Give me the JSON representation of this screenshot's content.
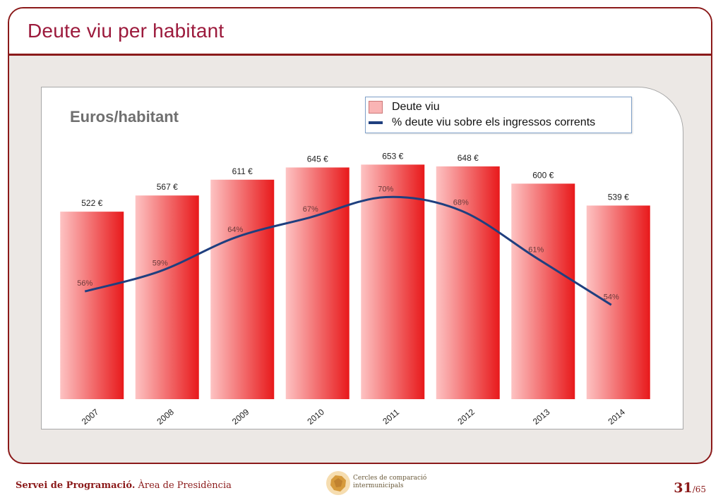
{
  "slide": {
    "title": "Deute viu per habitant"
  },
  "chart": {
    "unit_label": "Euros/habitant",
    "legend": [
      {
        "label": "Deute viu",
        "kind": "bar",
        "color": "#f9b4b4"
      },
      {
        "label": "% deute viu sobre els ingressos corrents",
        "kind": "line",
        "color": "#1f3f7f"
      }
    ]
  },
  "chart_data": {
    "type": "bar",
    "categories": [
      "2007",
      "2008",
      "2009",
      "2010",
      "2011",
      "2012",
      "2013",
      "2014"
    ],
    "series": [
      {
        "name": "Deute viu",
        "type": "bar",
        "values": [
          522,
          567,
          611,
          645,
          653,
          648,
          600,
          539
        ],
        "value_labels": [
          "522 €",
          "567 €",
          "611 €",
          "645 €",
          "653 €",
          "648 €",
          "600 €",
          "539 €"
        ],
        "color_light": "#fdc3c3",
        "color_dark": "#e8191b"
      },
      {
        "name": "% deute viu sobre els ingressos corrents",
        "type": "line",
        "values": [
          56,
          59,
          64,
          67,
          70,
          68,
          61,
          54
        ],
        "value_labels": [
          "56%",
          "59%",
          "64%",
          "67%",
          "70%",
          "68%",
          "61%",
          "54%"
        ],
        "color": "#1f3f7f"
      }
    ],
    "bar_ylim": [
      0,
      750
    ],
    "line_ylim": [
      40,
      80
    ],
    "ylabel": "Euros/habitant",
    "legend_position": "top-right",
    "grid": false
  },
  "footer": {
    "department_bold": "Servei de Programació.",
    "department_rest": " Àrea de Presidència",
    "logo_line1": "Cercles de comparació",
    "logo_line2": "intermunicipals",
    "page_current": "31",
    "page_total": "/65"
  }
}
